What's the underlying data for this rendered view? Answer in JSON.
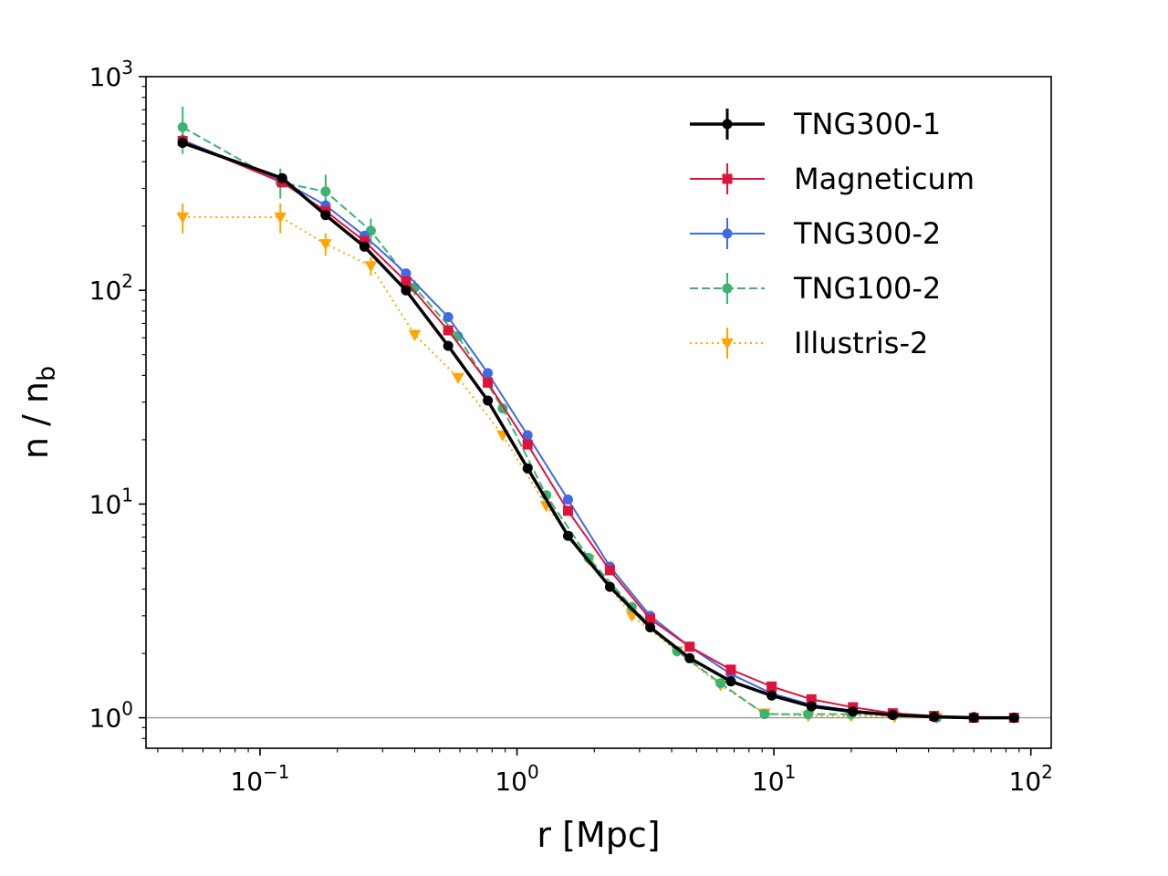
{
  "chart_data": {
    "type": "line",
    "title": "",
    "xlabel": "r [Mpc]",
    "ylabel_main": "n / n",
    "ylabel_sub": "b",
    "xscale": "log",
    "yscale": "log",
    "xlim": [
      0.036,
      120
    ],
    "ylim": [
      0.72,
      1000
    ],
    "reference_line_y": 1,
    "x_ticks": [
      {
        "base": "10",
        "exp": "−1",
        "value": 0.1
      },
      {
        "base": "10",
        "exp": "0",
        "value": 1
      },
      {
        "base": "10",
        "exp": "1",
        "value": 10
      },
      {
        "base": "10",
        "exp": "2",
        "value": 100
      }
    ],
    "y_ticks": [
      {
        "base": "10",
        "exp": "0",
        "value": 1
      },
      {
        "base": "10",
        "exp": "1",
        "value": 10
      },
      {
        "base": "10",
        "exp": "2",
        "value": 100
      },
      {
        "base": "10",
        "exp": "3",
        "value": 1000
      }
    ],
    "legend_position": "top-right",
    "series": [
      {
        "name": "Illustris-2",
        "color": "#ffa500",
        "marker": "triangle-down",
        "dash": "dotted",
        "width": 2,
        "x": [
          0.05,
          0.12,
          0.18,
          0.27,
          0.4,
          0.59,
          0.88,
          1.3,
          1.9,
          2.8,
          4.2,
          6.2,
          9.2,
          13.6,
          20,
          29.5,
          43
        ],
        "y": [
          220,
          220,
          165,
          130,
          62,
          39,
          21,
          9.8,
          5.5,
          3.0,
          2.05,
          1.42,
          1.05,
          1.02,
          1.02,
          1.01,
          1.0
        ],
        "yerr_rel": [
          0.16,
          0.16,
          0.12,
          0.1,
          0.06,
          0.03,
          0.02,
          0.02,
          0.02,
          0.02,
          0.02,
          0.02,
          0.02,
          0.02,
          0.01,
          0.01,
          0.01
        ]
      },
      {
        "name": "TNG100-2",
        "color": "#3cb371",
        "marker": "circle",
        "dash": "dashed",
        "width": 2,
        "x": [
          0.05,
          0.12,
          0.18,
          0.27,
          0.4,
          0.59,
          0.88,
          1.3,
          1.9,
          2.8,
          4.2,
          6.2,
          9.2,
          13.6,
          20,
          29.5,
          43
        ],
        "y": [
          580,
          320,
          290,
          190,
          103,
          61,
          28,
          11,
          5.6,
          3.3,
          2.05,
          1.45,
          1.04,
          1.04,
          1.04,
          1.04,
          1.0
        ],
        "yerr_rel": [
          0.25,
          0.16,
          0.2,
          0.14,
          0.08,
          0.04,
          0.03,
          0.02,
          0.02,
          0.02,
          0.02,
          0.02,
          0.02,
          0.02,
          0.01,
          0.01,
          0.01
        ]
      },
      {
        "name": "TNG300-2",
        "color": "#4169e1",
        "marker": "circle",
        "dash": "solid",
        "width": 2,
        "x": [
          0.05,
          0.122,
          0.18,
          0.255,
          0.37,
          0.54,
          0.77,
          1.1,
          1.58,
          2.3,
          3.3,
          4.7,
          6.8,
          9.8,
          14,
          20.3,
          29,
          42,
          60,
          86
        ],
        "y": [
          505,
          325,
          250,
          180,
          120,
          75,
          41,
          21,
          10.5,
          5.1,
          3.0,
          2.15,
          1.6,
          1.3,
          1.15,
          1.08,
          1.04,
          1.02,
          1.01,
          1.0
        ],
        "yerr_rel": [
          0.06,
          0.04,
          0.04,
          0.03,
          0.03,
          0.02,
          0.02,
          0.02,
          0.02,
          0.01,
          0.01,
          0.01,
          0.01,
          0.01,
          0.01,
          0.01,
          0.01,
          0.01,
          0.01,
          0.01
        ]
      },
      {
        "name": "Magneticum",
        "color": "#dc143c",
        "marker": "square",
        "dash": "solid",
        "width": 2,
        "x": [
          0.05,
          0.122,
          0.18,
          0.255,
          0.37,
          0.54,
          0.77,
          1.1,
          1.58,
          2.3,
          3.3,
          4.7,
          6.8,
          9.8,
          14,
          20.3,
          29,
          42,
          60,
          86
        ],
        "y": [
          500,
          320,
          235,
          170,
          110,
          65,
          37,
          19,
          9.3,
          4.9,
          2.9,
          2.15,
          1.68,
          1.4,
          1.22,
          1.12,
          1.05,
          1.02,
          1.0,
          1.0
        ],
        "yerr_rel": [
          0.04,
          0.03,
          0.03,
          0.03,
          0.02,
          0.02,
          0.02,
          0.02,
          0.01,
          0.01,
          0.01,
          0.01,
          0.01,
          0.01,
          0.01,
          0.01,
          0.01,
          0.01,
          0.01,
          0.01
        ]
      },
      {
        "name": "TNG300-1",
        "color": "#000000",
        "marker": "circle",
        "dash": "solid",
        "width": 3.5,
        "x": [
          0.05,
          0.122,
          0.18,
          0.255,
          0.37,
          0.54,
          0.77,
          1.1,
          1.58,
          2.3,
          3.3,
          4.7,
          6.8,
          9.8,
          14,
          20.3,
          29,
          42,
          60,
          86
        ],
        "y": [
          490,
          335,
          225,
          160,
          100,
          55,
          30.5,
          14.7,
          7.1,
          4.1,
          2.65,
          1.9,
          1.48,
          1.27,
          1.13,
          1.07,
          1.03,
          1.01,
          1.0,
          1.0
        ],
        "yerr_rel": [
          0.03,
          0.02,
          0.02,
          0.02,
          0.02,
          0.01,
          0.01,
          0.01,
          0.01,
          0.01,
          0.01,
          0.01,
          0.01,
          0.01,
          0.01,
          0.01,
          0.01,
          0.01,
          0.01,
          0.01
        ]
      }
    ],
    "legend_order": [
      "TNG300-1",
      "Magneticum",
      "TNG300-2",
      "TNG100-2",
      "Illustris-2"
    ]
  }
}
